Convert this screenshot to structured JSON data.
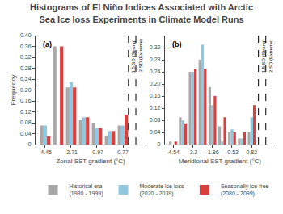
{
  "chart_data": [
    {
      "type": "bar",
      "title": "Histograms of El Niño Indices Associated with Arctic\nSea Ice loss Experiments in Climate Model Runs",
      "annotations": [
        "(a)"
      ],
      "x_label": "Zonal SST gradient (°C)",
      "y_label": "Frequency",
      "x": [
        -4.45,
        -3.58,
        -2.71,
        -1.84,
        -0.97,
        -0.1,
        0.77
      ],
      "series": [
        {
          "name": "Historical era\n(1980 - 1999)",
          "color": "#A8A8A8",
          "values": [
            0.07,
            0.36,
            0.21,
            0.09,
            0.08,
            0.03,
            0.07
          ]
        },
        {
          "name": "Moderate ice loss\n(2020 - 2039)",
          "color": "#90C8E0",
          "values": [
            0.07,
            0.0,
            0.23,
            0.1,
            0.06,
            0.05,
            0.07
          ]
        },
        {
          "name": "Seasonally ice-free\n(2080 - 2099)",
          "color": "#D84040",
          "values": [
            0.03,
            0.36,
            0.21,
            0.1,
            0.06,
            0.05,
            0.11
          ]
        }
      ],
      "vlines": [
        {
          "x": 1.14,
          "label": "1.5 SD (Strong)"
        },
        {
          "x": 1.64,
          "label": "2 SD (Extreme)"
        }
      ],
      "xlim": [
        -5.1,
        2.3
      ],
      "xticks": [
        -4.45,
        -2.71,
        -0.97,
        0.77
      ],
      "ylim": [
        0,
        0.4
      ],
      "yticks": [
        0,
        0.04,
        0.08,
        0.12,
        0.16,
        {
          "value": 0.2,
          "label": "0.20"
        },
        0.24,
        0.28,
        0.32,
        0.36,
        {
          "value": 0.4,
          "label": "0.40"
        }
      ],
      "grid": false,
      "legend": "bottom"
    },
    {
      "type": "bar",
      "annotations": [
        "(b)"
      ],
      "x_label": "Meridional SST gradient (°C)",
      "x": [
        -4.54,
        -3.87,
        -3.2,
        -2.53,
        -1.86,
        -1.19,
        -0.52,
        0.15,
        0.82
      ],
      "series": [
        {
          "name": "Historical era\n(1980 - 1999)",
          "color": "#A8A8A8",
          "values": [
            0.01,
            0.09,
            0.24,
            0.28,
            0.19,
            0.06,
            0.04,
            0.02,
            0.04
          ]
        },
        {
          "name": "Moderate ice loss\n(2020 - 2039)",
          "color": "#90C8E0",
          "values": [
            0.0,
            0.08,
            0.24,
            0.33,
            0.13,
            0.01,
            0.05,
            0.02,
            0.09
          ]
        },
        {
          "name": "Seasonally ice-free\n(2080 - 2099)",
          "color": "#D84040",
          "values": [
            0.01,
            0.07,
            0.25,
            0.25,
            0.16,
            0.09,
            0.04,
            0.04,
            0.13
          ]
        }
      ],
      "vlines": [
        {
          "x": 1.28,
          "label": "1.5 SD (Strong)"
        },
        {
          "x": 1.78,
          "label": "2 SD (Extreme)"
        }
      ],
      "xlim": [
        -5.1,
        2.4
      ],
      "xticks": [
        -4.54,
        -3.2,
        -1.86,
        -0.52,
        0.82
      ],
      "ylim": [
        0,
        0.36
      ],
      "yticks": [
        0,
        0.04,
        0.08,
        0.12,
        0.16,
        {
          "value": 0.2,
          "label": "0.20"
        },
        0.24,
        0.28,
        0.32
      ],
      "grid": false
    }
  ]
}
